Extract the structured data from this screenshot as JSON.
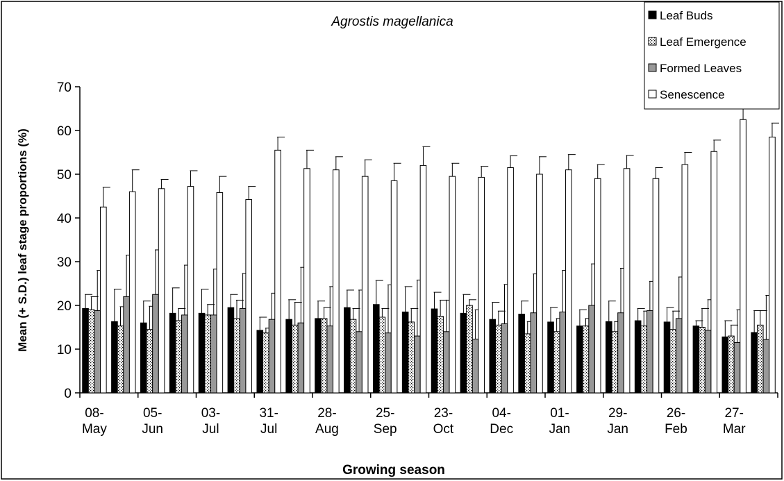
{
  "chart_data": {
    "type": "bar",
    "title": "Agrostis magellanica",
    "x_label": "Growing season",
    "y_label": "Mean (+ S.D.) leaf stage proportions (%)",
    "categories": [
      "08-\nMay",
      null,
      "05-\nJun",
      null,
      "03-\nJul",
      null,
      "31-\nJul",
      null,
      "28-\nAug",
      null,
      "25-\nSep",
      null,
      "23-\nOct",
      null,
      "04-\nDec",
      null,
      "01-\nJan",
      null,
      "29-\nJan",
      null,
      "26-\nFeb",
      null,
      "27-\nMar",
      null
    ],
    "series": [
      {
        "name": "Leaf Buds",
        "color": "#000000",
        "values": [
          19.3,
          16.3,
          16,
          18.2,
          18.2,
          19.5,
          14.3,
          16.8,
          17,
          19.5,
          20.2,
          18.5,
          19.2,
          18.2,
          16.8,
          18,
          16.2,
          15.3,
          16.3,
          16.5,
          16.2,
          15.3,
          12.8,
          13.8
        ],
        "errors": [
          3.2,
          7.4,
          5,
          5.8,
          5.5,
          3,
          3,
          4.5,
          4,
          4,
          5.5,
          5.8,
          3.8,
          4.3,
          3.9,
          3,
          3.3,
          3.7,
          4.7,
          2.8,
          3.3,
          1.2,
          3.7,
          5
        ]
      },
      {
        "name": "Leaf Emergence",
        "color": "#ffffff",
        "pattern": "dotted",
        "values": [
          19,
          15.3,
          14.5,
          16.5,
          17.8,
          17,
          13.7,
          15.5,
          17,
          16.8,
          17.3,
          16.2,
          17.5,
          20,
          15.5,
          13.5,
          14,
          15.3,
          14,
          15.3,
          14.5,
          15,
          13,
          15.5
        ],
        "errors": [
          3,
          4.4,
          5.3,
          2.8,
          2.4,
          4.2,
          1.1,
          5.2,
          2.5,
          2.5,
          2,
          3.1,
          3.7,
          1.3,
          3.2,
          2.8,
          3,
          1.7,
          2.3,
          3.4,
          4.2,
          4.3,
          2.5,
          3.3
        ]
      },
      {
        "name": "Formed Leaves",
        "color": "#999999",
        "values": [
          18.8,
          22,
          22.5,
          17.8,
          17.8,
          19.3,
          16.8,
          16,
          15.3,
          14,
          13.7,
          13,
          14,
          12.3,
          15.8,
          18.3,
          18.5,
          20,
          18.3,
          18.8,
          17,
          14.3,
          11.5,
          12.2
        ],
        "errors": [
          9.2,
          9.5,
          10.2,
          11.4,
          10.5,
          8,
          6,
          12.7,
          9,
          9.5,
          11,
          12.8,
          7.2,
          6.7,
          9,
          8.9,
          9.5,
          9.5,
          10.2,
          6.7,
          9.5,
          7,
          7.5,
          10.1
        ]
      },
      {
        "name": "Senescence",
        "color": "#ffffff",
        "values": [
          42.5,
          46,
          46.7,
          47.2,
          45.8,
          44.2,
          55.5,
          51.3,
          51,
          49.5,
          48.5,
          52,
          49.5,
          49.3,
          51.5,
          50,
          51,
          49,
          51.3,
          49,
          52.2,
          55.2,
          62.5,
          58.5
        ],
        "errors": [
          4.5,
          5,
          2.1,
          3.6,
          3.7,
          3,
          3,
          4.2,
          3,
          3.8,
          4,
          4.3,
          3,
          2.5,
          2.7,
          4,
          3.5,
          3.2,
          3,
          2.5,
          2.8,
          2.6,
          2.5,
          3.2
        ]
      }
    ],
    "ylim": [
      0,
      70
    ],
    "yticks": [
      0,
      10,
      20,
      30,
      40,
      50,
      60,
      70
    ],
    "legend": "top-right"
  }
}
